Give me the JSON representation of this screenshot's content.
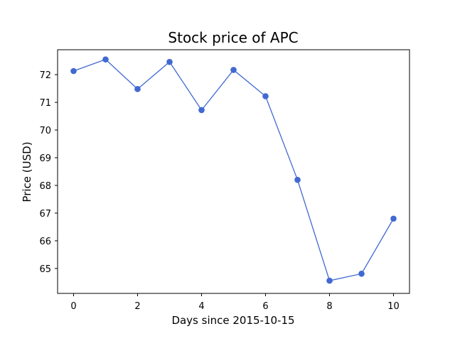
{
  "chart_data": {
    "type": "line",
    "title": "Stock price of APC",
    "xlabel": "Days since 2015-10-15",
    "ylabel": "Price (USD)",
    "x": [
      0,
      1,
      2,
      3,
      4,
      5,
      6,
      7,
      8,
      9,
      10
    ],
    "series": [
      {
        "values": [
          72.13,
          72.55,
          71.48,
          72.46,
          70.72,
          72.17,
          71.22,
          68.2,
          64.56,
          64.81,
          66.8
        ],
        "color": "#4169d1"
      }
    ],
    "xlim": [
      -0.5,
      10.5
    ],
    "ylim": [
      64.1,
      72.9
    ],
    "xticks": [
      0,
      2,
      4,
      6,
      8,
      10
    ],
    "yticks": [
      65,
      66,
      67,
      68,
      69,
      70,
      71,
      72
    ],
    "grid": false,
    "legend": "none"
  }
}
